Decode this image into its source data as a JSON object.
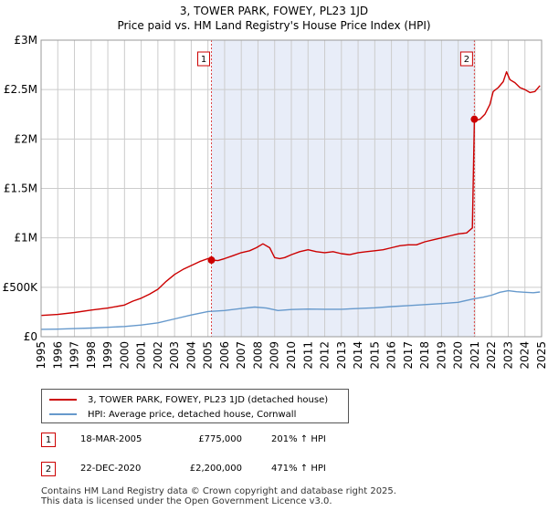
{
  "chart_data": {
    "type": "line",
    "title": "3, TOWER PARK, FOWEY, PL23 1JD",
    "subtitle": "Price paid vs. HM Land Registry's House Price Index (HPI)",
    "xlabel": "",
    "ylabel": "",
    "xlim": [
      1995,
      2025
    ],
    "ylim": [
      0,
      3000000
    ],
    "x_ticks": [
      1995,
      1996,
      1997,
      1998,
      1999,
      2000,
      2001,
      2002,
      2003,
      2004,
      2005,
      2006,
      2007,
      2008,
      2009,
      2010,
      2011,
      2012,
      2013,
      2014,
      2015,
      2016,
      2017,
      2018,
      2019,
      2020,
      2021,
      2022,
      2023,
      2024,
      2025
    ],
    "x_tick_labels": [
      "1995",
      "1996",
      "1997",
      "1998",
      "1999",
      "2000",
      "2001",
      "2002",
      "2003",
      "2004",
      "2005",
      "2006",
      "2007",
      "2008",
      "2009",
      "2010",
      "2011",
      "2012",
      "2013",
      "2014",
      "2015",
      "2016",
      "2017",
      "2018",
      "2019",
      "2020",
      "2021",
      "2022",
      "2023",
      "2024",
      "2025"
    ],
    "y_ticks": [
      0,
      500000,
      1000000,
      1500000,
      2000000,
      2500000,
      3000000
    ],
    "y_tick_labels": [
      "£0",
      "£500K",
      "£1M",
      "£1.5M",
      "£2M",
      "£2.5M",
      "£3M"
    ],
    "grid": true,
    "shaded_region": [
      2005.21,
      2020.97
    ],
    "series": [
      {
        "name": "3, TOWER PARK, FOWEY, PL23 1JD (detached house)",
        "color": "#cc0000",
        "x": [
          1995.0,
          1996.0,
          1997.0,
          1998.0,
          1999.0,
          2000.0,
          2000.5,
          2001.0,
          2001.5,
          2002.0,
          2002.5,
          2003.0,
          2003.5,
          2004.0,
          2004.5,
          2005.0,
          2005.21,
          2005.6,
          2006.0,
          2006.5,
          2007.0,
          2007.5,
          2007.9,
          2008.3,
          2008.7,
          2009.0,
          2009.3,
          2009.6,
          2010.0,
          2010.5,
          2011.0,
          2011.5,
          2012.0,
          2012.5,
          2013.0,
          2013.5,
          2014.0,
          2014.5,
          2015.0,
          2015.5,
          2016.0,
          2016.5,
          2017.0,
          2017.5,
          2018.0,
          2018.5,
          2019.0,
          2019.5,
          2020.0,
          2020.5,
          2020.85,
          2020.97,
          2021.1,
          2021.3,
          2021.6,
          2021.9,
          2022.1,
          2022.4,
          2022.7,
          2022.9,
          2023.1,
          2023.4,
          2023.7,
          2024.0,
          2024.3,
          2024.6,
          2024.9
        ],
        "values": [
          215000,
          225000,
          245000,
          270000,
          290000,
          320000,
          360000,
          390000,
          430000,
          480000,
          560000,
          630000,
          680000,
          720000,
          760000,
          790000,
          775000,
          770000,
          790000,
          820000,
          850000,
          870000,
          900000,
          940000,
          900000,
          800000,
          790000,
          800000,
          830000,
          860000,
          880000,
          860000,
          850000,
          860000,
          840000,
          830000,
          850000,
          860000,
          870000,
          880000,
          900000,
          920000,
          930000,
          930000,
          960000,
          980000,
          1000000,
          1020000,
          1040000,
          1050000,
          1100000,
          2200000,
          2190000,
          2200000,
          2250000,
          2350000,
          2480000,
          2520000,
          2580000,
          2680000,
          2600000,
          2570000,
          2520000,
          2500000,
          2470000,
          2480000,
          2540000
        ]
      },
      {
        "name": "HPI: Average price, detached house, Cornwall",
        "color": "#6699cc",
        "x": [
          1995,
          1996,
          1997,
          1998,
          1999,
          2000,
          2001,
          2002,
          2003,
          2004,
          2005,
          2006,
          2007,
          2007.8,
          2008.5,
          2009.2,
          2010,
          2011,
          2012,
          2013,
          2014,
          2015,
          2016,
          2017,
          2018,
          2019,
          2020,
          2020.97,
          2021.5,
          2022,
          2022.5,
          2023,
          2023.5,
          2024,
          2024.5,
          2024.9
        ],
        "values": [
          75000,
          77000,
          82000,
          88000,
          95000,
          103000,
          118000,
          140000,
          180000,
          220000,
          255000,
          265000,
          285000,
          300000,
          290000,
          265000,
          275000,
          280000,
          278000,
          278000,
          285000,
          293000,
          305000,
          315000,
          325000,
          335000,
          348000,
          385000,
          400000,
          420000,
          450000,
          465000,
          455000,
          450000,
          445000,
          452000
        ]
      }
    ],
    "annotations": [
      {
        "label": "1",
        "x": 2005.21
      },
      {
        "label": "2",
        "x": 2020.97
      }
    ],
    "sale_points": [
      {
        "label": "1",
        "x": 2005.21,
        "value": 775000
      },
      {
        "label": "2",
        "x": 2020.97,
        "value": 2200000
      }
    ]
  },
  "legend": {
    "property_label": "3, TOWER PARK, FOWEY, PL23 1JD (detached house)",
    "hpi_label": "HPI: Average price, detached house, Cornwall"
  },
  "transactions": [
    {
      "num": "1",
      "date": "18-MAR-2005",
      "price": "£775,000",
      "hpi": "201% ↑ HPI"
    },
    {
      "num": "2",
      "date": "22-DEC-2020",
      "price": "£2,200,000",
      "hpi": "471% ↑ HPI"
    }
  ],
  "footer": {
    "line1": "Contains HM Land Registry data © Crown copyright and database right 2025.",
    "line2": "This data is licensed under the Open Government Licence v3.0."
  },
  "colors": {
    "property_line": "#cc0000",
    "hpi_line": "#6699cc",
    "shade": "#e8edf8",
    "grid": "#cccccc"
  }
}
